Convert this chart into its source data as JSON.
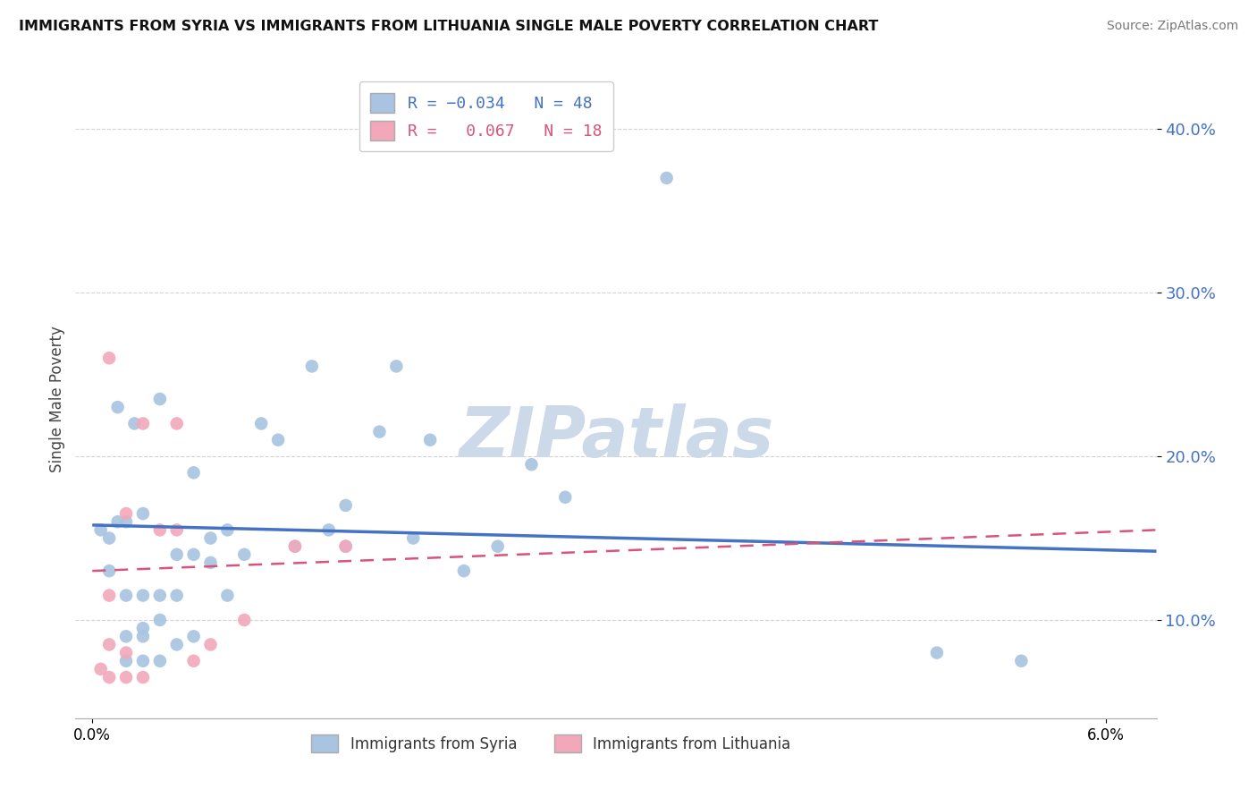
{
  "title": "IMMIGRANTS FROM SYRIA VS IMMIGRANTS FROM LITHUANIA SINGLE MALE POVERTY CORRELATION CHART",
  "source": "Source: ZipAtlas.com",
  "ylabel": "Single Male Poverty",
  "ylim": [
    0.04,
    0.43
  ],
  "xlim": [
    -0.001,
    0.063
  ],
  "yticks": [
    0.1,
    0.2,
    0.3,
    0.4
  ],
  "ytick_labels": [
    "10.0%",
    "20.0%",
    "30.0%",
    "40.0%"
  ],
  "xticks": [
    0.0,
    0.06
  ],
  "xtick_labels": [
    "0.0%",
    "6.0%"
  ],
  "legend_syria": "Immigrants from Syria",
  "legend_lithuania": "Immigrants from Lithuania",
  "r_syria": "-0.034",
  "n_syria": "48",
  "r_lithuania": "0.067",
  "n_lithuania": "18",
  "color_syria": "#a8c4e0",
  "color_lithuania": "#f2a8ba",
  "line_color_syria": "#4472c4",
  "line_color_lithuania": "#d9547a",
  "watermark_color": "#ccd9e8",
  "syria_x": [
    0.0005,
    0.001,
    0.001,
    0.0015,
    0.0015,
    0.002,
    0.002,
    0.002,
    0.002,
    0.0025,
    0.003,
    0.003,
    0.003,
    0.003,
    0.003,
    0.004,
    0.004,
    0.004,
    0.004,
    0.005,
    0.005,
    0.005,
    0.006,
    0.006,
    0.006,
    0.007,
    0.007,
    0.008,
    0.008,
    0.009,
    0.01,
    0.011,
    0.012,
    0.013,
    0.014,
    0.015,
    0.015,
    0.017,
    0.018,
    0.019,
    0.02,
    0.022,
    0.024,
    0.026,
    0.028,
    0.034,
    0.05,
    0.055
  ],
  "syria_y": [
    0.155,
    0.13,
    0.15,
    0.16,
    0.23,
    0.075,
    0.09,
    0.115,
    0.16,
    0.22,
    0.075,
    0.09,
    0.095,
    0.115,
    0.165,
    0.075,
    0.1,
    0.115,
    0.235,
    0.085,
    0.115,
    0.14,
    0.09,
    0.14,
    0.19,
    0.135,
    0.15,
    0.115,
    0.155,
    0.14,
    0.22,
    0.21,
    0.145,
    0.255,
    0.155,
    0.145,
    0.17,
    0.215,
    0.255,
    0.15,
    0.21,
    0.13,
    0.145,
    0.195,
    0.175,
    0.37,
    0.08,
    0.075
  ],
  "lithuania_x": [
    0.0005,
    0.001,
    0.001,
    0.001,
    0.001,
    0.002,
    0.002,
    0.002,
    0.003,
    0.003,
    0.004,
    0.005,
    0.005,
    0.006,
    0.007,
    0.009,
    0.012,
    0.015
  ],
  "lithuania_y": [
    0.07,
    0.065,
    0.085,
    0.115,
    0.26,
    0.065,
    0.08,
    0.165,
    0.065,
    0.22,
    0.155,
    0.155,
    0.22,
    0.075,
    0.085,
    0.1,
    0.145,
    0.145
  ],
  "syria_line_x": [
    0.0,
    0.063
  ],
  "syria_line_y": [
    0.158,
    0.142
  ],
  "lithuania_line_x": [
    0.0,
    0.063
  ],
  "lithuania_line_y": [
    0.13,
    0.155
  ]
}
